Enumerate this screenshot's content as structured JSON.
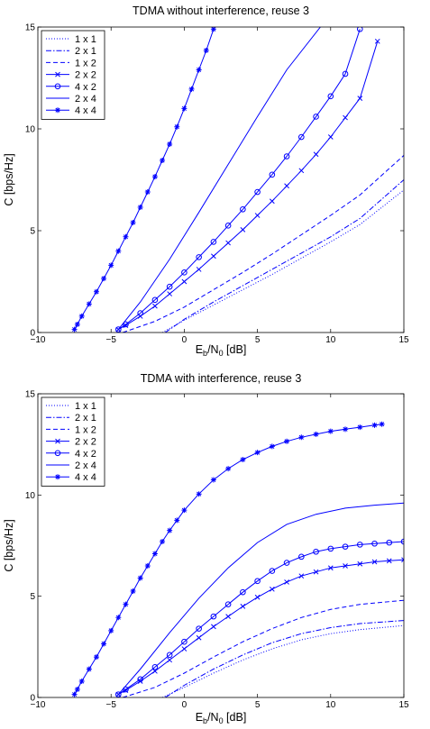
{
  "chart_data": [
    {
      "type": "line",
      "title": "TDMA without interference, reuse 3",
      "xlabel": "E_b/N_0 [dB]",
      "ylabel": "C [bps/Hz]",
      "xlim": [
        -10,
        15
      ],
      "ylim": [
        0,
        15
      ],
      "xticks": [
        "−10",
        "−5",
        "0",
        "5",
        "10",
        "15"
      ],
      "yticks": [
        "0",
        "5",
        "10",
        "15"
      ],
      "legend": "top-left",
      "color": "#0000ff",
      "series": [
        {
          "name": "1 x 1",
          "style": "dotted",
          "marker": "none",
          "x": [
            -1.5,
            0,
            2,
            4,
            6,
            8,
            10,
            12,
            15
          ],
          "y": [
            0,
            0.6,
            1.35,
            2.1,
            2.85,
            3.65,
            4.45,
            5.3,
            7.0
          ]
        },
        {
          "name": "2 x 1",
          "style": "dashdot",
          "marker": "none",
          "x": [
            -1.3,
            0,
            2,
            4,
            6,
            8,
            10,
            12,
            15
          ],
          "y": [
            0,
            0.65,
            1.5,
            2.3,
            3.1,
            3.9,
            4.7,
            5.6,
            7.5
          ]
        },
        {
          "name": "1 x 2",
          "style": "dashed",
          "marker": "none",
          "x": [
            -4.2,
            -2,
            0,
            2,
            4,
            6,
            8,
            10,
            12,
            15
          ],
          "y": [
            0,
            0.55,
            1.25,
            2.1,
            2.95,
            3.85,
            4.8,
            5.75,
            6.75,
            8.7
          ]
        },
        {
          "name": "2 x 2",
          "style": "solid",
          "marker": "x",
          "x": [
            -4.5,
            -4,
            -3,
            -2,
            -1,
            0,
            1,
            2,
            3,
            4,
            5,
            6,
            7,
            8,
            9,
            10,
            11,
            12,
            13.2
          ],
          "y": [
            0.15,
            0.35,
            0.8,
            1.3,
            1.9,
            2.5,
            3.1,
            3.75,
            4.4,
            5.05,
            5.75,
            6.45,
            7.2,
            7.95,
            8.75,
            9.6,
            10.55,
            11.5,
            14.3
          ]
        },
        {
          "name": "4 x 2",
          "style": "solid",
          "marker": "o",
          "x": [
            -4.5,
            -4,
            -3,
            -2,
            -1,
            0,
            1,
            2,
            3,
            4,
            5,
            6,
            7,
            8,
            9,
            10,
            11,
            12
          ],
          "y": [
            0.15,
            0.4,
            0.95,
            1.6,
            2.25,
            2.95,
            3.7,
            4.45,
            5.25,
            6.05,
            6.9,
            7.75,
            8.65,
            9.6,
            10.6,
            11.6,
            12.7,
            14.9
          ]
        },
        {
          "name": "2 x 4",
          "style": "solid",
          "marker": "none",
          "x": [
            -4.5,
            -3,
            -1,
            1,
            3,
            5,
            7,
            9.3
          ],
          "y": [
            0.15,
            1.5,
            3.6,
            5.9,
            8.25,
            10.6,
            12.9,
            15.0
          ]
        },
        {
          "name": "4 x 4",
          "style": "solid",
          "marker": "star",
          "x": [
            -7.5,
            -7.3,
            -7,
            -6.5,
            -6,
            -5.5,
            -5,
            -4.5,
            -4,
            -3.5,
            -3,
            -2.5,
            -2,
            -1.5,
            -1,
            -0.5,
            0,
            0.5,
            1,
            1.5,
            2.0
          ],
          "y": [
            0.15,
            0.4,
            0.8,
            1.4,
            2.0,
            2.65,
            3.3,
            4.0,
            4.7,
            5.4,
            6.15,
            6.9,
            7.65,
            8.45,
            9.25,
            10.1,
            11.0,
            11.95,
            12.9,
            13.85,
            14.9
          ]
        }
      ]
    },
    {
      "type": "line",
      "title": "TDMA with interference, reuse 3",
      "xlabel": "E_b/N_0 [dB]",
      "ylabel": "C [bps/Hz]",
      "xlim": [
        -10,
        15
      ],
      "ylim": [
        0,
        15
      ],
      "xticks": [
        "−10",
        "−5",
        "0",
        "5",
        "10",
        "15"
      ],
      "yticks": [
        "0",
        "5",
        "10",
        "15"
      ],
      "legend": "top-left",
      "color": "#0000ff",
      "series": [
        {
          "name": "1 x 1",
          "style": "dotted",
          "marker": "none",
          "x": [
            -1.5,
            0,
            2,
            4,
            6,
            8,
            10,
            12,
            15
          ],
          "y": [
            0,
            0.5,
            1.2,
            1.85,
            2.4,
            2.85,
            3.15,
            3.35,
            3.55
          ]
        },
        {
          "name": "2 x 1",
          "style": "dashdot",
          "marker": "none",
          "x": [
            -1.3,
            0,
            2,
            4,
            6,
            8,
            10,
            12,
            15
          ],
          "y": [
            0,
            0.6,
            1.4,
            2.1,
            2.7,
            3.15,
            3.45,
            3.65,
            3.8
          ]
        },
        {
          "name": "1 x 2",
          "style": "dashed",
          "marker": "none",
          "x": [
            -4.2,
            -2,
            0,
            2,
            4,
            6,
            8,
            10,
            12,
            15
          ],
          "y": [
            0,
            0.5,
            1.2,
            2.0,
            2.75,
            3.4,
            3.95,
            4.35,
            4.6,
            4.8
          ]
        },
        {
          "name": "2 x 2",
          "style": "solid",
          "marker": "x",
          "x": [
            -4.5,
            -4,
            -3,
            -2,
            -1,
            0,
            1,
            2,
            3,
            4,
            5,
            6,
            7,
            8,
            9,
            10,
            11,
            12,
            13,
            14,
            15
          ],
          "y": [
            0.15,
            0.35,
            0.8,
            1.3,
            1.85,
            2.4,
            2.95,
            3.5,
            4.0,
            4.5,
            4.95,
            5.35,
            5.7,
            6.0,
            6.2,
            6.4,
            6.5,
            6.6,
            6.7,
            6.75,
            6.8
          ]
        },
        {
          "name": "4 x 2",
          "style": "solid",
          "marker": "o",
          "x": [
            -4.5,
            -4,
            -3,
            -2,
            -1,
            0,
            1,
            2,
            3,
            4,
            5,
            6,
            7,
            8,
            9,
            10,
            11,
            12,
            13,
            14,
            15
          ],
          "y": [
            0.15,
            0.4,
            0.9,
            1.5,
            2.1,
            2.75,
            3.4,
            4.0,
            4.6,
            5.2,
            5.75,
            6.25,
            6.65,
            6.95,
            7.2,
            7.35,
            7.45,
            7.55,
            7.6,
            7.65,
            7.7
          ]
        },
        {
          "name": "2 x 4",
          "style": "solid",
          "marker": "none",
          "x": [
            -4.5,
            -3,
            -1,
            1,
            3,
            5,
            7,
            9,
            11,
            13,
            15
          ],
          "y": [
            0.15,
            1.4,
            3.2,
            4.9,
            6.4,
            7.65,
            8.55,
            9.05,
            9.35,
            9.5,
            9.6
          ]
        },
        {
          "name": "4 x 4",
          "style": "solid",
          "marker": "star",
          "x": [
            -7.5,
            -7.3,
            -7,
            -6.5,
            -6,
            -5.5,
            -5,
            -4.5,
            -4,
            -3.5,
            -3,
            -2.5,
            -2,
            -1.5,
            -1,
            -0.5,
            0,
            1,
            2,
            3,
            4,
            5,
            6,
            7,
            8,
            9,
            10,
            11,
            12,
            13,
            13.5
          ],
          "y": [
            0.15,
            0.4,
            0.8,
            1.4,
            2.0,
            2.65,
            3.3,
            3.95,
            4.6,
            5.25,
            5.9,
            6.5,
            7.1,
            7.7,
            8.25,
            8.75,
            9.25,
            10.05,
            10.75,
            11.3,
            11.75,
            12.1,
            12.4,
            12.65,
            12.85,
            13.0,
            13.15,
            13.25,
            13.35,
            13.45,
            13.5
          ]
        }
      ]
    }
  ]
}
